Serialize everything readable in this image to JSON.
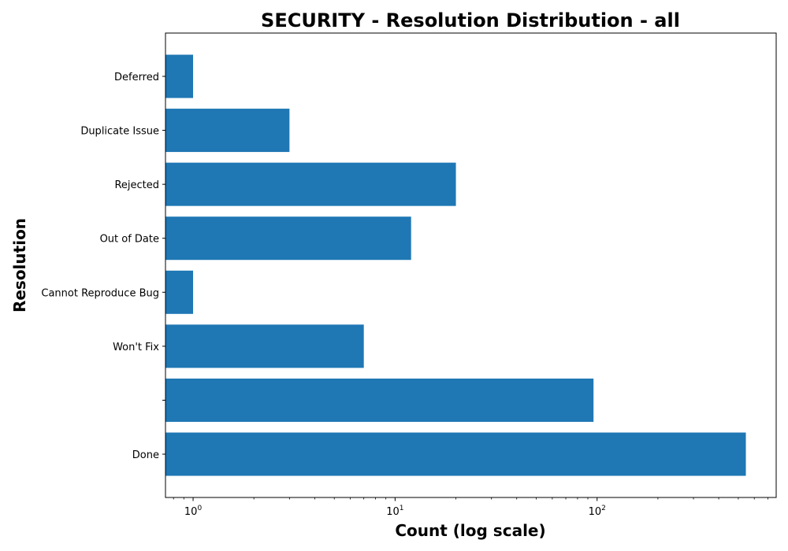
{
  "chart_data": {
    "type": "bar",
    "orientation": "horizontal",
    "title": "SECURITY - Resolution Distribution - all",
    "xlabel": "Count (log scale)",
    "ylabel": "Resolution",
    "x_scale": "log",
    "xlim": [
      0.73,
      770
    ],
    "x_ticks": [
      {
        "value": 1,
        "base": "10",
        "exp": "0"
      },
      {
        "value": 10,
        "base": "10",
        "exp": "1"
      },
      {
        "value": 100,
        "base": "10",
        "exp": "2"
      }
    ],
    "categories": [
      "Deferred",
      "Duplicate Issue",
      "Rejected",
      "Out of Date",
      "Cannot Reproduce Bug",
      "Won't Fix",
      "",
      "Done"
    ],
    "values": [
      1,
      3,
      20,
      12,
      1,
      7,
      96,
      545
    ],
    "bar_color": "#1f77b4",
    "grid": false,
    "legend": "none"
  }
}
